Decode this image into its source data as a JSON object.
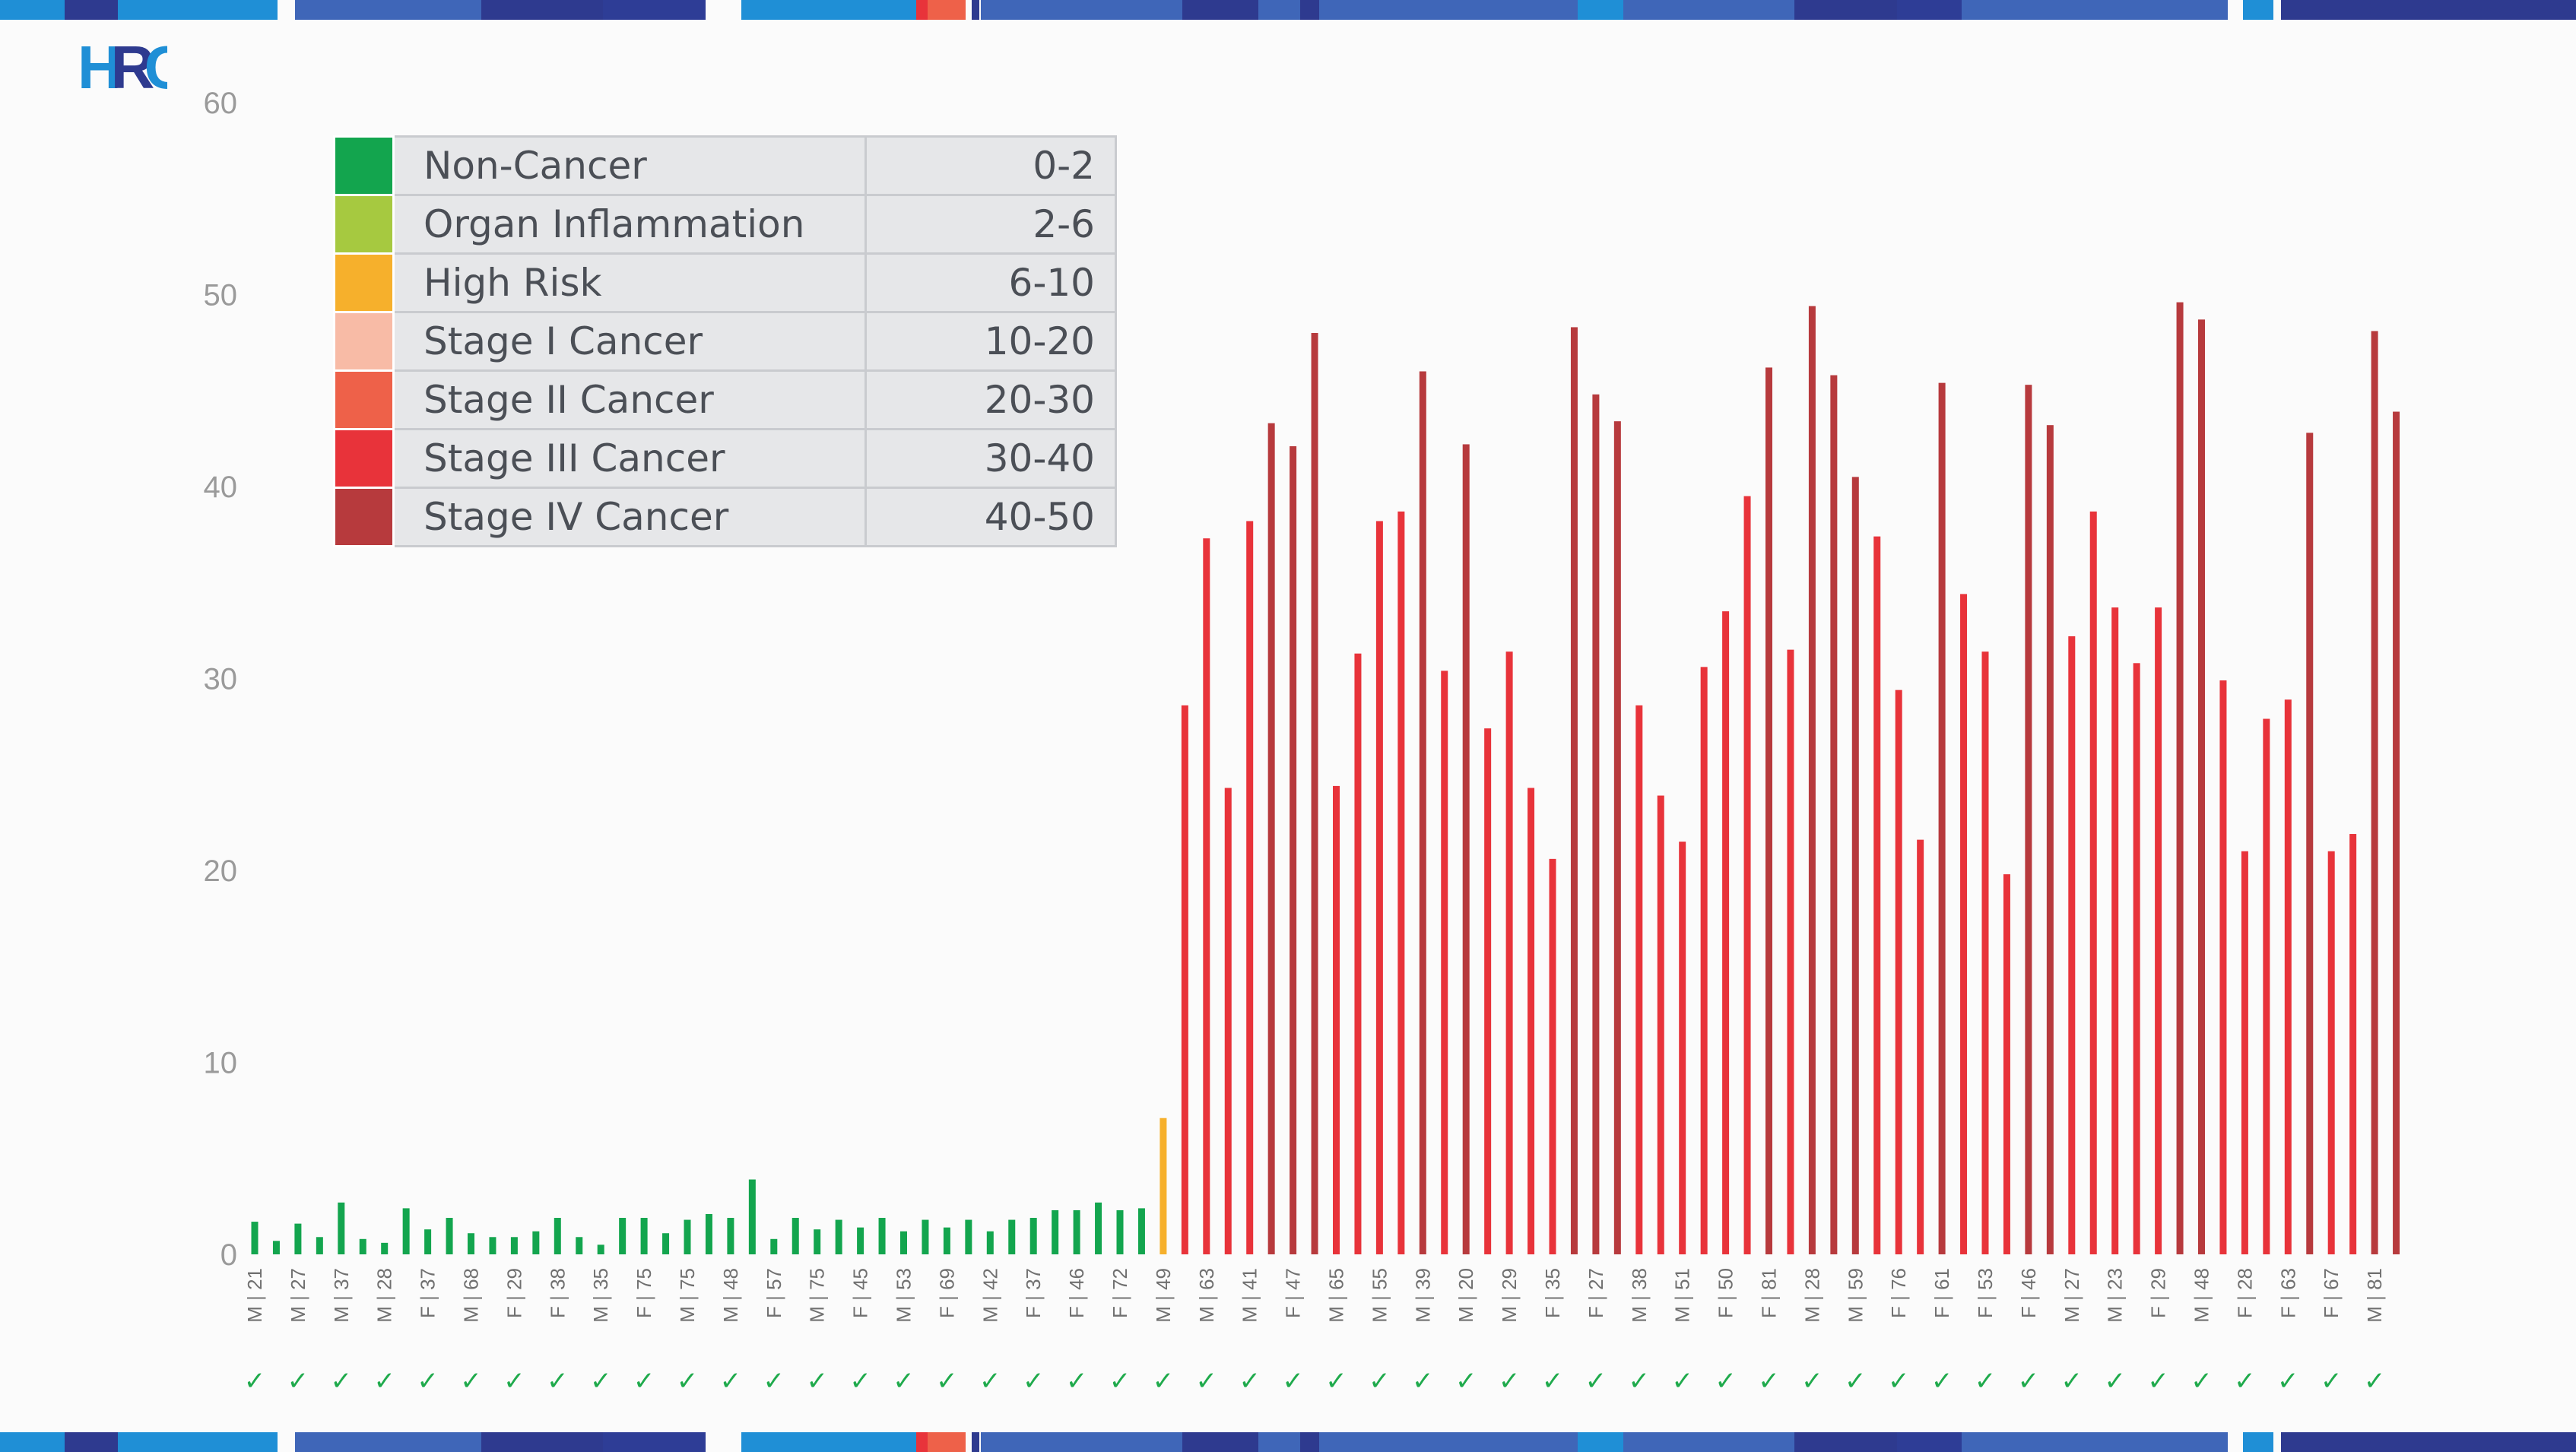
{
  "logo": {
    "text": "HRC",
    "colors": [
      "#1f8fd6",
      "#2e3a8f"
    ]
  },
  "legend": [
    {
      "label": "Non-Cancer",
      "range": "0-2",
      "color": "#13a54e"
    },
    {
      "label": "Organ Inflammation",
      "range": "2-6",
      "color": "#a6c940"
    },
    {
      "label": "High Risk",
      "range": "6-10",
      "color": "#f6b02c"
    },
    {
      "label": "Stage I Cancer",
      "range": "10-20",
      "color": "#f8bba6"
    },
    {
      "label": "Stage II Cancer",
      "range": "20-30",
      "color": "#ee6149"
    },
    {
      "label": "Stage III Cancer",
      "range": "30-40",
      "color": "#e8333a"
    },
    {
      "label": "Stage IV Cancer",
      "range": "40-50",
      "color": "#b73a3d"
    }
  ],
  "chart_data": {
    "type": "bar",
    "ylim": [
      0,
      60
    ],
    "yticks": [
      0,
      10,
      20,
      30,
      40,
      50,
      60
    ],
    "grid": false,
    "legend_position": "top-left",
    "category_labels_shown": [
      "M | 21",
      "M | 27",
      "M | 37",
      "M | 28",
      "F | 37",
      "M | 68",
      "F | 29",
      "F | 38",
      "M | 35",
      "F | 75",
      "M | 75",
      "M | 48",
      "F | 57",
      "M | 75",
      "F | 45",
      "M | 53",
      "F | 69",
      "M | 42",
      "F | 37",
      "F | 46",
      "F | 72",
      "M | 49",
      "M | 63",
      "M | 41",
      "F | 47",
      "M | 65",
      "M | 55",
      "M | 39",
      "M | 20",
      "M | 29",
      "F | 35",
      "F | 27",
      "M | 38",
      "M | 51",
      "F | 50",
      "F | 81",
      "M | 28",
      "M | 59",
      "F | 76",
      "F | 61",
      "F | 53",
      "F | 46",
      "M | 27",
      "M | 23",
      "F | 29",
      "M | 48",
      "F | 28",
      "F | 63",
      "F | 67",
      "M | 81"
    ],
    "values": [
      1.7,
      0.7,
      1.6,
      0.9,
      2.7,
      0.8,
      0.6,
      2.4,
      1.3,
      1.9,
      1.1,
      0.9,
      0.9,
      1.2,
      1.9,
      0.9,
      0.5,
      1.9,
      1.9,
      1.1,
      1.8,
      2.1,
      1.9,
      3.9,
      0.8,
      1.9,
      1.3,
      1.8,
      1.4,
      1.9,
      1.2,
      1.8,
      1.4,
      1.8,
      1.2,
      1.8,
      1.9,
      2.3,
      2.3,
      2.7,
      2.3,
      2.4,
      7.1,
      28.6,
      37.3,
      24.3,
      38.2,
      43.3,
      42.1,
      48.0,
      24.4,
      31.3,
      38.2,
      38.7,
      46.0,
      30.4,
      42.2,
      27.4,
      31.4,
      24.3,
      20.6,
      48.3,
      44.8,
      43.4,
      28.6,
      23.9,
      21.5,
      30.6,
      33.5,
      39.5,
      46.2,
      31.5,
      49.4,
      45.8,
      40.5,
      37.4,
      29.4,
      21.6,
      45.4,
      34.4,
      31.4,
      19.8,
      45.3,
      43.2,
      32.2,
      38.7,
      33.7,
      30.8,
      33.7,
      49.6,
      48.7,
      29.9,
      21.0,
      27.9,
      28.9,
      42.8,
      21.0,
      21.9,
      48.1,
      43.9
    ],
    "bar_colors": [
      "#13a54e",
      "#f6b02c",
      "#e8333a",
      "#b73a3d"
    ],
    "check_symbol": "✓"
  }
}
